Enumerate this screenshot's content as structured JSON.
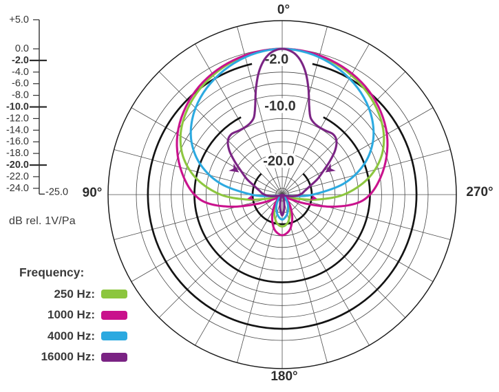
{
  "chart_data": {
    "type": "line",
    "subtype": "polar-pattern",
    "angle_unit": "degrees",
    "angle_labels": [
      {
        "text": "0°",
        "deg": 0
      },
      {
        "text": "90°",
        "deg": 90
      },
      {
        "text": "270°",
        "deg": 270
      },
      {
        "text": "180°",
        "deg": 180
      }
    ],
    "radial_axis": {
      "units": "dB rel. 1V/Pa",
      "min": -25,
      "max": 5,
      "thin_rings_db": [
        0,
        -4,
        -6,
        -8,
        -12,
        -14,
        -16,
        -18,
        -22,
        -24
      ],
      "bold_rings": [
        {
          "db": -2,
          "label": "-2.0",
          "gap_deg": 13
        },
        {
          "db": -10,
          "label": "-10.0",
          "gap_deg": 28
        },
        {
          "db": -20,
          "label": "-20.0",
          "gap_deg": 45
        }
      ],
      "outer_ring_db": 5,
      "spoke_step_deg": 15,
      "scale_ticks": [
        {
          "label": "+5.0",
          "db": 5,
          "bold": false
        },
        {
          "label": "0.0",
          "db": 0,
          "bold": false
        },
        {
          "label": "-2.0",
          "db": -2,
          "bold": true
        },
        {
          "label": "-4.0",
          "db": -4,
          "bold": false
        },
        {
          "label": "-6.0",
          "db": -6,
          "bold": false
        },
        {
          "label": "-8.0",
          "db": -8,
          "bold": false
        },
        {
          "label": "-10.0",
          "db": -10,
          "bold": true
        },
        {
          "label": "-12.0",
          "db": -12,
          "bold": false
        },
        {
          "label": "-14.0",
          "db": -14,
          "bold": false
        },
        {
          "label": "-16.0",
          "db": -16,
          "bold": false
        },
        {
          "label": "-18.0",
          "db": -18,
          "bold": false
        },
        {
          "label": "-20.0",
          "db": -20,
          "bold": true
        },
        {
          "label": "-22.0",
          "db": -22,
          "bold": false
        },
        {
          "label": "-24.0",
          "db": -24,
          "bold": false
        }
      ],
      "bottom_label": {
        "label": "-25.0",
        "db": -25
      }
    },
    "legend": {
      "title": "Frequency:",
      "items": [
        {
          "label": "250 Hz:",
          "color": "#8CC63E"
        },
        {
          "label": "1000 Hz:",
          "color": "#C9118C"
        },
        {
          "label": "4000 Hz:",
          "color": "#2BA9E0"
        },
        {
          "label": "16000 Hz:",
          "color": "#7A2383"
        }
      ]
    },
    "series": [
      {
        "name": "250 Hz",
        "color": "#8CC63E",
        "points_deg_db": [
          [
            0,
            0
          ],
          [
            10,
            -0.18
          ],
          [
            20,
            -0.65
          ],
          [
            30,
            -1.35
          ],
          [
            40,
            -2.25
          ],
          [
            50,
            -3.4
          ],
          [
            60,
            -4.9
          ],
          [
            70,
            -7.1
          ],
          [
            80,
            -10.3
          ],
          [
            90,
            -14.5
          ],
          [
            98,
            -19.0
          ],
          [
            106,
            -22.6
          ],
          [
            115,
            -24.1
          ],
          [
            125,
            -24.4
          ],
          [
            135,
            -24.1
          ],
          [
            145,
            -23.1
          ],
          [
            155,
            -21.8
          ],
          [
            165,
            -20.6
          ],
          [
            172,
            -19.9
          ],
          [
            180,
            -19.6
          ]
        ],
        "arrows": []
      },
      {
        "name": "1000 Hz",
        "color": "#C9118C",
        "points_deg_db": [
          [
            0,
            0
          ],
          [
            10,
            -0.12
          ],
          [
            20,
            -0.5
          ],
          [
            30,
            -1.05
          ],
          [
            40,
            -1.85
          ],
          [
            50,
            -2.95
          ],
          [
            60,
            -4.3
          ],
          [
            70,
            -6.0
          ],
          [
            80,
            -7.9
          ],
          [
            90,
            -10.0
          ],
          [
            97,
            -12.4
          ],
          [
            104,
            -16.5
          ],
          [
            111,
            -20.8
          ],
          [
            118,
            -23.3
          ],
          [
            127,
            -24.3
          ],
          [
            136,
            -23.9
          ],
          [
            145,
            -22.7
          ],
          [
            155,
            -21.0
          ],
          [
            165,
            -19.3
          ],
          [
            172,
            -18.5
          ],
          [
            180,
            -18.1
          ]
        ],
        "arrows": [
          {
            "deg": -96,
            "db": -19.7,
            "heading": 258,
            "size": 9
          },
          {
            "deg": 96,
            "db": -19.7,
            "heading": 102,
            "size": 9
          }
        ]
      },
      {
        "name": "4000 Hz",
        "color": "#2BA9E0",
        "points_deg_db": [
          [
            0,
            0
          ],
          [
            10,
            -0.3
          ],
          [
            20,
            -1.0
          ],
          [
            30,
            -2.0
          ],
          [
            40,
            -3.25
          ],
          [
            50,
            -4.9
          ],
          [
            60,
            -7.1
          ],
          [
            70,
            -10.2
          ],
          [
            80,
            -14.4
          ],
          [
            90,
            -19.8
          ],
          [
            97,
            -22.9
          ],
          [
            105,
            -24.3
          ],
          [
            115,
            -24.8
          ],
          [
            130,
            -24.7
          ],
          [
            142,
            -23.9
          ],
          [
            152,
            -23.0
          ],
          [
            162,
            -22.0
          ],
          [
            170,
            -21.3
          ],
          [
            180,
            -20.8
          ]
        ],
        "arrows": []
      },
      {
        "name": "16000 Hz",
        "color": "#7A2383",
        "points_deg_db": [
          [
            0,
            0
          ],
          [
            2,
            -0.12
          ],
          [
            5,
            -0.7
          ],
          [
            8,
            -1.9
          ],
          [
            11,
            -3.8
          ],
          [
            14,
            -6.4
          ],
          [
            17,
            -9.2
          ],
          [
            20,
            -10.9
          ],
          [
            24,
            -11.6
          ],
          [
            29,
            -11.85
          ],
          [
            34,
            -11.8
          ],
          [
            40,
            -11.5
          ],
          [
            45,
            -11.9
          ],
          [
            50,
            -13.2
          ],
          [
            55,
            -15.1
          ],
          [
            60,
            -16.9
          ],
          [
            66,
            -18.4
          ],
          [
            72,
            -19.9
          ],
          [
            80,
            -21.1
          ],
          [
            88,
            -21.8
          ],
          [
            96,
            -22.8
          ],
          [
            105,
            -24.1
          ],
          [
            118,
            -24.9
          ],
          [
            135,
            -25.0
          ],
          [
            150,
            -24.7
          ],
          [
            160,
            -24.3
          ],
          [
            168,
            -23.4
          ],
          [
            174,
            -22.3
          ],
          [
            180,
            -21.5
          ]
        ],
        "arrows": [
          {
            "deg": -62,
            "db": -15.8,
            "heading": 124,
            "size": 13
          },
          {
            "deg": 62,
            "db": -15.8,
            "heading": 236,
            "size": 13
          }
        ]
      }
    ]
  }
}
